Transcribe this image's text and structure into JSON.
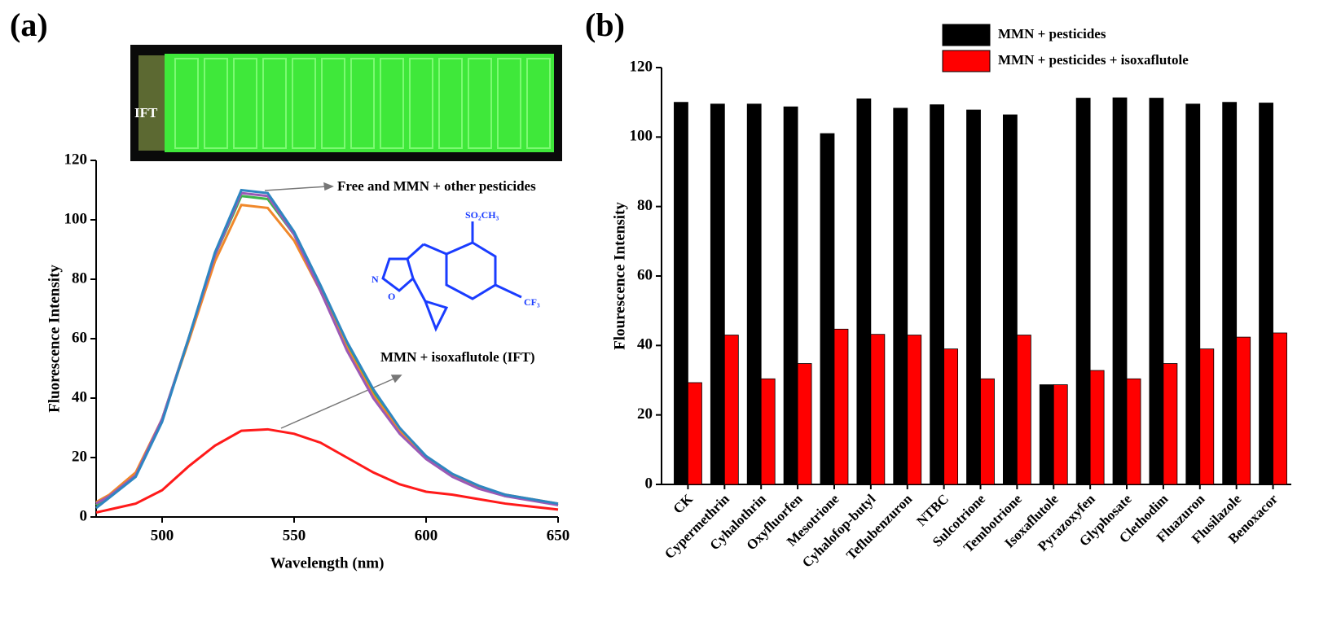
{
  "chart_data": [
    {
      "type": "line",
      "panel_label": "(a)",
      "photo_label": "IFT",
      "structure_labels": [
        "SO₂CH₃",
        "N",
        "O",
        "CF₃"
      ],
      "annotations": [
        "Free and MMN + other pesticides",
        "MMN + isoxaflutole (IFT)"
      ],
      "x_label": "Wavelength (nm)",
      "y_label": "Fluorescence Intensity",
      "x": [
        475,
        480,
        490,
        500,
        510,
        520,
        530,
        540,
        550,
        560,
        570,
        580,
        590,
        600,
        610,
        620,
        630,
        640,
        650
      ],
      "series": [
        {
          "color": "#3cb44b",
          "values": [
            4,
            7,
            14,
            33,
            60,
            88,
            108,
            107,
            95,
            77,
            58,
            42,
            29,
            20,
            14,
            10,
            7,
            6,
            4
          ]
        },
        {
          "color": "#f0882a",
          "values": [
            5,
            7.5,
            15,
            33,
            59,
            86,
            105,
            104,
            93,
            76,
            57,
            41,
            29,
            20,
            14,
            10,
            7.5,
            6,
            4.5
          ]
        },
        {
          "color": "#9b59b6",
          "values": [
            4.5,
            7,
            14,
            33,
            60,
            88,
            109,
            108,
            95,
            76,
            56,
            40,
            28,
            19.5,
            13.5,
            9.5,
            7,
            5.5,
            4
          ]
        },
        {
          "color": "#2e86c1",
          "values": [
            3,
            6.5,
            13.5,
            32,
            60,
            89,
            110,
            109,
            96,
            78,
            59,
            43,
            30,
            20.5,
            14.5,
            10.5,
            7.5,
            6,
            4.5
          ]
        },
        {
          "color": "#ff1a1a",
          "values": [
            1.5,
            2.5,
            4.5,
            9,
            17,
            24,
            29,
            29.5,
            28,
            25,
            20,
            15,
            11,
            8.5,
            7.5,
            6,
            4.5,
            3.5,
            2.5
          ]
        }
      ],
      "xlim": [
        475,
        650
      ],
      "xticks": [
        500,
        550,
        600,
        650
      ],
      "ylim": [
        0,
        120
      ],
      "yticks": [
        0,
        20,
        40,
        60,
        80,
        100,
        120
      ]
    },
    {
      "type": "bar",
      "panel_label": "(b)",
      "y_label": "Flourescence Intensity",
      "categories": [
        "CK",
        "Cypermethrin",
        "Cyhalothrin",
        "Oxyfluorfen",
        "Mesotrione",
        "Cyhalofop-butyl",
        "Teflubenzuron",
        "NTBC",
        "Sulcotrione",
        "Tembotrione",
        "Isoxaflutole",
        "Pyrazoxyfen",
        "Glyphosate",
        "Clethodim",
        "Fluazuron",
        "Flusilazole",
        "Benoxacor"
      ],
      "series": [
        {
          "name": "MMN + pesticides",
          "color": "#000000",
          "values": [
            110,
            109.5,
            109.5,
            108.7,
            101,
            111,
            108.3,
            109.3,
            107.8,
            106.4,
            28.7,
            111.2,
            111.3,
            111.2,
            109.5,
            110,
            109.8
          ]
        },
        {
          "name": "MMN + pesticides + isoxaflutole",
          "color": "#ff0000",
          "values": [
            29.3,
            43,
            30.4,
            34.8,
            44.7,
            43.2,
            43,
            39,
            30.4,
            43,
            28.7,
            32.8,
            30.4,
            34.8,
            39,
            42.4,
            43.6
          ]
        }
      ],
      "ylim": [
        0,
        120
      ],
      "yticks": [
        0,
        20,
        40,
        60,
        80,
        100,
        120
      ]
    }
  ]
}
